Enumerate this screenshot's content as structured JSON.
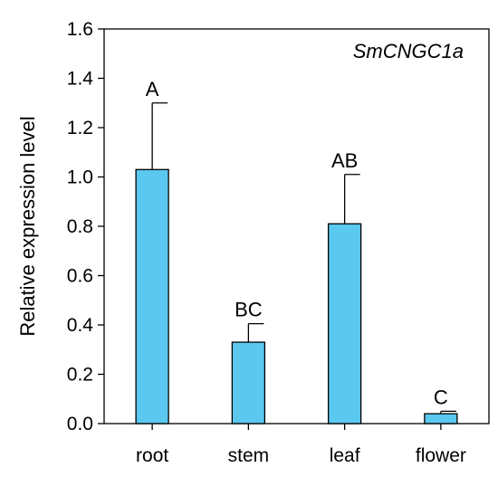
{
  "chart_data": {
    "type": "bar",
    "title": "SmCNGC1a",
    "xlabel": "",
    "ylabel": "Relative expression level",
    "categories": [
      "root",
      "stem",
      "leaf",
      "flower"
    ],
    "values": [
      1.03,
      0.33,
      0.81,
      0.04
    ],
    "errors": [
      0.27,
      0.075,
      0.2,
      0.01
    ],
    "significance": [
      "A",
      "BC",
      "AB",
      "C"
    ],
    "ylim": [
      0,
      1.6
    ],
    "yticks": [
      0.0,
      0.2,
      0.4,
      0.6,
      0.8,
      1.0,
      1.2,
      1.4,
      1.6
    ],
    "ytick_labels": [
      "0.0",
      "0.2",
      "0.4",
      "0.6",
      "0.8",
      "1.0",
      "1.2",
      "1.4",
      "1.6"
    ],
    "grid": false,
    "bar_color": "#5BC8F0",
    "edge_color": "#000000"
  }
}
